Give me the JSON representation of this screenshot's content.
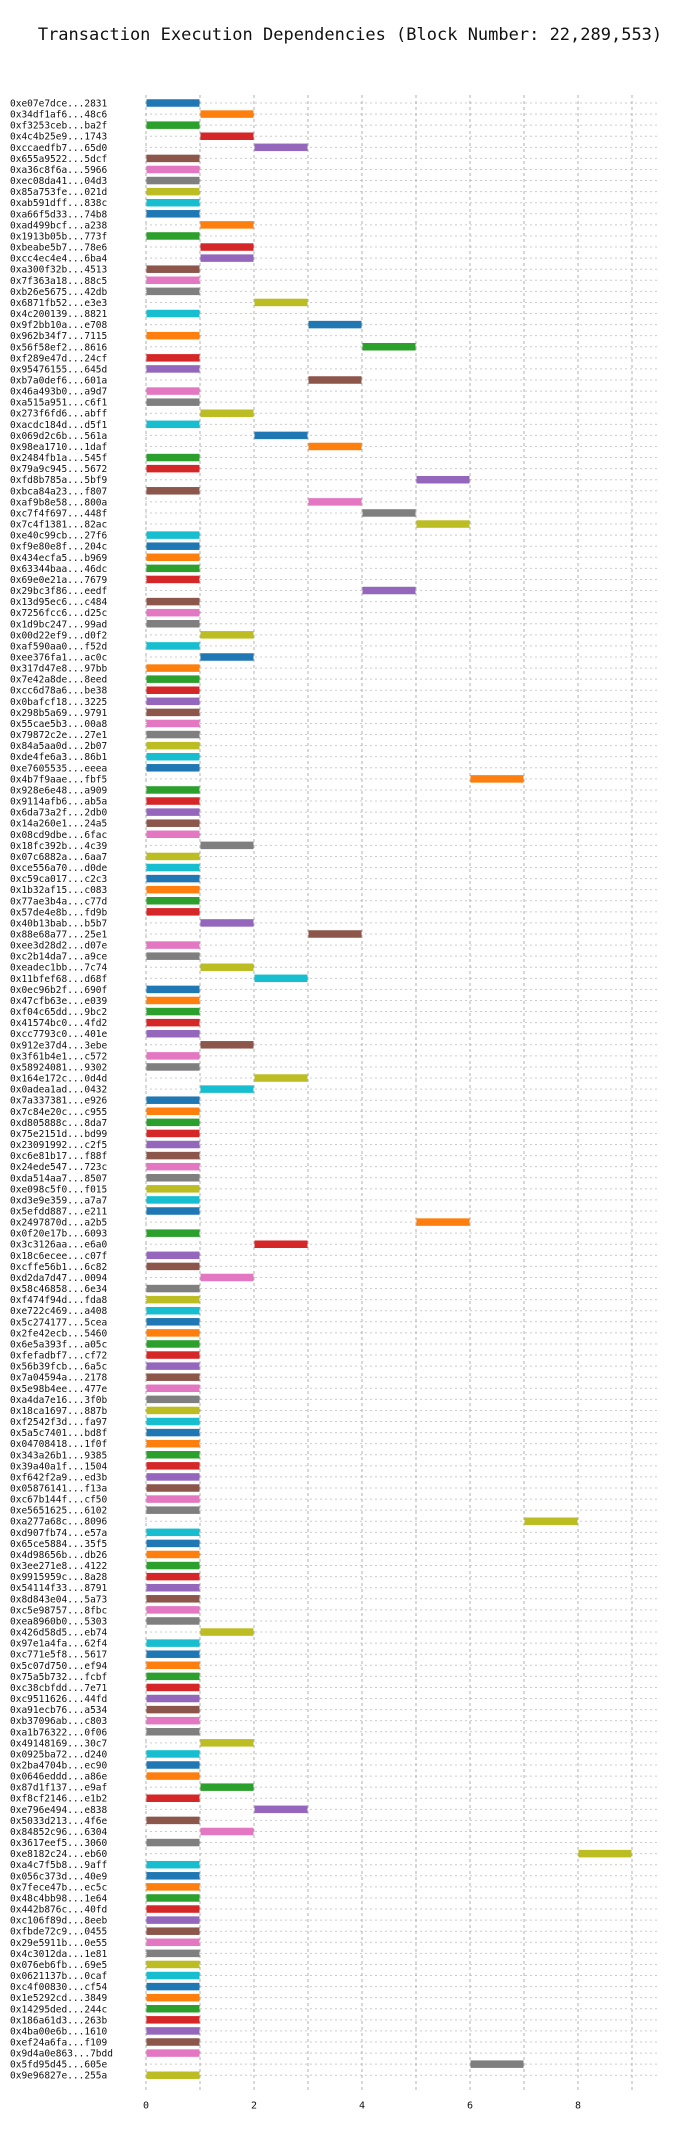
{
  "chart_data": {
    "type": "bar",
    "orientation": "horizontal",
    "title": "Transaction Execution Dependencies (Block Number: 22,289,553)",
    "xlabel": "",
    "ylabel": "",
    "xlim": [
      0,
      9.5
    ],
    "xticks": [
      0,
      2,
      4,
      6,
      8
    ],
    "grid": "x-dashed",
    "palette": [
      "#1f77b4",
      "#ff7f0e",
      "#2ca02c",
      "#d62728",
      "#9467bd",
      "#8c564b",
      "#e377c2",
      "#7f7f7f",
      "#bcbd22",
      "#17becf"
    ],
    "labels": [
      "0xe07e7dce...2831",
      "0x34df1af6...48c6",
      "0xf3253ceb...ba2f",
      "0x4c4b25e9...1743",
      "0xccaedfb7...65d0",
      "0x655a9522...5dcf",
      "0xa36c8f6a...5966",
      "0xec08da41...04d3",
      "0x85a753fe...021d",
      "0xab591dff...838c",
      "0xa66f5d33...74b8",
      "0xad499bcf...a238",
      "0x1913b05b...773f",
      "0xbeabe5b7...78e6",
      "0xcc4ec4e4...6ba4",
      "0xa300f32b...4513",
      "0x7f363a18...88c5",
      "0xb26e5675...42db",
      "0x6871fb52...e3e3",
      "0x4c200139...8821",
      "0x9f2bb10a...e708",
      "0x962b34f7...7115",
      "0x56f58ef2...8616",
      "0xf289e47d...24cf",
      "0x95476155...645d",
      "0xb7a0def6...601a",
      "0x46a493b0...a9d7",
      "0xa515a951...c6f1",
      "0x273f6fd6...abff",
      "0xacdc184d...d5f1",
      "0x069d2c6b...561a",
      "0x98ea1710...1daf",
      "0x2484fb1a...545f",
      "0x79a9c945...5672",
      "0xfd8b785a...5bf9",
      "0xbca84a23...f807",
      "0xaf9b8e58...800a",
      "0xc7f4f697...448f",
      "0x7c4f1381...82ac",
      "0xe40c99cb...27f6",
      "0xf9e80e8f...204c",
      "0x434ecfa5...b969",
      "0x63344baa...46dc",
      "0x69e0e21a...7679",
      "0x29bc3f86...eedf",
      "0x13d95ec6...c484",
      "0x7256fcc6...d25c",
      "0x1d9bc247...99ad",
      "0x00d22ef9...d0f2",
      "0xaf590aa0...f52d",
      "0xee376fa1...ac0c",
      "0x317d47e8...97bb",
      "0x7e42a8de...8eed",
      "0xcc6d78a6...be38",
      "0x0bafcf18...3225",
      "0x298b5a69...9791",
      "0x55cae5b3...00a8",
      "0x79872c2e...27e1",
      "0x84a5aa0d...2b07",
      "0xde4fe6a3...86b1",
      "0xe7605535...eeea",
      "0x4b7f9aae...fbf5",
      "0x928e6e48...a909",
      "0x9114afb6...ab5a",
      "0x6da73a2f...2db0",
      "0x14a260e1...24a5",
      "0x08cd9dbe...6fac",
      "0x18fc392b...4c39",
      "0x07c6882a...6aa7",
      "0xce556a70...d0de",
      "0xc59ca017...c2c3",
      "0x1b32af15...c083",
      "0x77ae3b4a...c77d",
      "0x57de4e8b...fd9b",
      "0x40b13bab...b5b7",
      "0x88e68a77...25e1",
      "0xee3d28d2...d07e",
      "0xc2b14da7...a9ce",
      "0xeadec1bb...7c74",
      "0x11bfef68...d68f",
      "0x0ec96b2f...690f",
      "0x47cfb63e...e039",
      "0xf04c65dd...9bc2",
      "0x41574bc0...4fd2",
      "0xcc7793c0...401e",
      "0x912e37d4...3ebe",
      "0x3f61b4e1...c572",
      "0x58924081...9302",
      "0x164e172c...0d4d",
      "0x0adea1ad...0432",
      "0x7a337381...e926",
      "0x7c84e20c...c955",
      "0xd805888c...8da7",
      "0x75e2151d...bd99",
      "0x23091992...c2f5",
      "0xc6e81b17...f88f",
      "0x24ede547...723c",
      "0xda514aa7...8507",
      "0xe098c5f0...f015",
      "0xd3e9e359...a7a7",
      "0x5efdd887...e211",
      "0x2497870d...a2b5",
      "0x0f20e17b...6093",
      "0x3c3126aa...e6a0",
      "0x18c6ecee...c07f",
      "0xcffe56b1...6c82",
      "0xd2da7d47...0094",
      "0x58c46858...6e34",
      "0xf474f94d...fda8",
      "0xe722c469...a408",
      "0x5c274177...5cea",
      "0x2fe42ecb...5460",
      "0x6e5a393f...a05c",
      "0xfefadbf7...cf72",
      "0x56b39fcb...6a5c",
      "0x7a04594a...2178",
      "0x5e98b4ee...477e",
      "0xa4da7e16...3f0b",
      "0x18ca1697...887b",
      "0xf2542f3d...fa97",
      "0x5a5c7401...bd8f",
      "0x04708418...1f0f",
      "0x343a26b1...9385",
      "0x39a40a1f...1504",
      "0xf642f2a9...ed3b",
      "0x05876141...f13a",
      "0xc67b144f...cf50",
      "0xe5651625...6102",
      "0xa277a68c...8096",
      "0xd907fb74...e57a",
      "0x65ce5884...35f5",
      "0x4d98656b...db26",
      "0x3ee271e8...4122",
      "0x9915959c...8a28",
      "0x54114f33...8791",
      "0x8d843e04...5a73",
      "0xc5e98757...8fbc",
      "0xea8960b0...5303",
      "0x426d58d5...eb74",
      "0x97e1a4fa...62f4",
      "0xc771e5f8...5617",
      "0x5c07d750...ef94",
      "0x75a5b732...fcbf",
      "0xc38cbfdd...7e71",
      "0xc9511626...44fd",
      "0xa91ecb76...a534",
      "0xb37096ab...c803",
      "0xa1b76322...0f06",
      "0x49148169...30c7",
      "0x0925ba72...d240",
      "0x2ba4704b...ec90",
      "0x0646eddd...a86e",
      "0x87d1f137...e9af",
      "0xf8cf2146...e1b2",
      "0xe796e494...e838",
      "0x5033d213...4f6e",
      "0x84852c96...6304",
      "0x3617eef5...3060",
      "0xe8182c24...eb60",
      "0xa4c7f5b8...9aff",
      "0x056c373d...40e9",
      "0x7fece47b...ec5c",
      "0x48c4bb98...1e64",
      "0x442b876c...40fd",
      "0xc106f89d...8eeb",
      "0xfbde72c9...0455",
      "0x29e5911b...0e55",
      "0x4c3012da...1e81",
      "0x076eb6fb...69e5",
      "0x0621137b...0caf",
      "0xc4f00830...cf54",
      "0x1e5292cd...3849",
      "0x14295ded...244c",
      "0x186a61d3...263b",
      "0x4ba00e6b...1610",
      "0xef24a6fa...f109",
      "0x9d4a0e863...7bdd",
      "0x5fd95d45...605e",
      "0x9e96827e...255a"
    ],
    "starts": [
      0,
      1,
      0,
      1,
      2,
      0,
      0,
      0,
      0,
      0,
      0,
      1,
      0,
      1,
      1,
      0,
      0,
      0,
      2,
      0,
      3,
      0,
      4,
      0,
      0,
      3,
      0,
      0,
      1,
      0,
      2,
      3,
      0,
      0,
      5,
      0,
      3,
      4,
      5,
      0,
      0,
      0,
      0,
      0,
      4,
      0,
      0,
      0,
      1,
      0,
      1,
      0,
      0,
      0,
      0,
      0,
      0,
      0,
      0,
      0,
      0,
      6,
      0,
      0,
      0,
      0,
      0,
      1,
      0,
      0,
      0,
      0,
      0,
      0,
      1,
      3,
      0,
      0,
      1,
      2,
      0,
      0,
      0,
      0,
      0,
      1,
      0,
      0,
      2,
      1,
      0,
      0,
      0,
      0,
      0,
      0,
      0,
      0,
      0,
      0,
      0,
      5,
      0,
      2,
      0,
      0,
      1,
      0,
      0,
      0,
      0,
      0,
      0,
      0,
      0,
      0,
      0,
      0,
      0,
      0,
      0,
      0,
      0,
      0,
      0,
      0,
      0,
      0,
      7,
      0,
      0,
      0,
      0,
      0,
      0,
      0,
      0,
      0,
      1,
      0,
      0,
      0,
      0,
      0,
      0,
      0,
      0,
      0,
      1,
      0,
      0,
      0,
      1,
      0,
      2,
      0,
      1,
      0,
      8,
      0,
      0,
      0,
      0,
      0,
      0,
      0,
      0,
      0,
      0,
      0,
      0,
      0,
      0,
      0,
      0,
      0,
      0,
      6,
      0
    ],
    "values": [
      1,
      1,
      1,
      1,
      1,
      1,
      1,
      1,
      1,
      1,
      1,
      1,
      1,
      1,
      1,
      1,
      1,
      1,
      1,
      1,
      1,
      1,
      1,
      1,
      1,
      1,
      1,
      1,
      1,
      1,
      1,
      1,
      1,
      1,
      1,
      1,
      1,
      1,
      1,
      1,
      1,
      1,
      1,
      1,
      1,
      1,
      1,
      1,
      1,
      1,
      1,
      1,
      1,
      1,
      1,
      1,
      1,
      1,
      1,
      1,
      1,
      1,
      1,
      1,
      1,
      1,
      1,
      1,
      1,
      1,
      1,
      1,
      1,
      1,
      1,
      1,
      1,
      1,
      1,
      1,
      1,
      1,
      1,
      1,
      1,
      1,
      1,
      1,
      1,
      1,
      1,
      1,
      1,
      1,
      1,
      1,
      1,
      1,
      1,
      1,
      1,
      1,
      1,
      1,
      1,
      1,
      1,
      1,
      1,
      1,
      1,
      1,
      1,
      1,
      1,
      1,
      1,
      1,
      1,
      1,
      1,
      1,
      1,
      1,
      1,
      1,
      1,
      1,
      1,
      1,
      1,
      1,
      1,
      1,
      1,
      1,
      1,
      1,
      1,
      1,
      1,
      1,
      1,
      1,
      1,
      1,
      1,
      1,
      1,
      1,
      1,
      1,
      1,
      1,
      1,
      1,
      1,
      1,
      1,
      1,
      1,
      1,
      1,
      1,
      1,
      1,
      1,
      1,
      1,
      1,
      1,
      1,
      1,
      1,
      1,
      1,
      1,
      1,
      1
    ]
  }
}
